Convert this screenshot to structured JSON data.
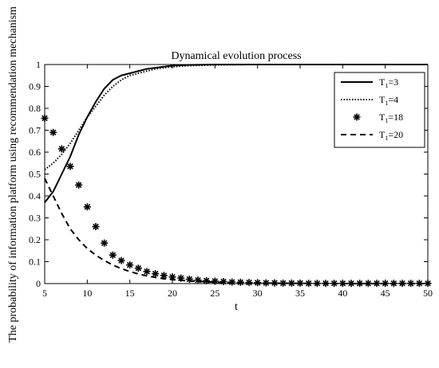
{
  "chart_data": {
    "type": "line",
    "title": "Dynamical evolution process",
    "xlabel": "t",
    "ylabel": "The probability of information platform using recommendation mechanism",
    "xlim": [
      5,
      50
    ],
    "ylim": [
      0,
      1
    ],
    "xticks": [
      "5",
      "10",
      "15",
      "20",
      "25",
      "30",
      "35",
      "40",
      "45",
      "50"
    ],
    "yticks": [
      "0",
      "0.1",
      "0.2",
      "0.3",
      "0.4",
      "0.5",
      "0.6",
      "0.7",
      "0.8",
      "0.9",
      "1"
    ],
    "grid": false,
    "legend_position": "top-right",
    "series": [
      {
        "name": "T1=3",
        "legend_main": "T",
        "legend_sub": "1",
        "legend_tail": "=3",
        "style": "solid",
        "x": [
          5,
          6,
          7,
          8,
          9,
          10,
          11,
          12,
          13,
          14,
          15,
          16,
          17,
          18,
          19,
          20,
          22,
          25,
          30,
          35,
          40,
          45,
          50
        ],
        "y": [
          0.37,
          0.42,
          0.5,
          0.58,
          0.68,
          0.76,
          0.83,
          0.89,
          0.93,
          0.95,
          0.96,
          0.97,
          0.98,
          0.985,
          0.99,
          0.995,
          0.998,
          1.0,
          1.0,
          1.0,
          1.0,
          1.0,
          1.0
        ]
      },
      {
        "name": "T1=4",
        "legend_main": "T",
        "legend_sub": "1",
        "legend_tail": "=4",
        "style": "dotted",
        "x": [
          5,
          6,
          7,
          8,
          9,
          10,
          11,
          12,
          13,
          14,
          15,
          16,
          17,
          18,
          19,
          20,
          22,
          25,
          30,
          35,
          40,
          45,
          50
        ],
        "y": [
          0.52,
          0.55,
          0.59,
          0.64,
          0.7,
          0.76,
          0.81,
          0.86,
          0.9,
          0.93,
          0.95,
          0.96,
          0.97,
          0.98,
          0.985,
          0.99,
          0.995,
          0.998,
          1.0,
          1.0,
          1.0,
          1.0,
          1.0
        ]
      },
      {
        "name": "T1=18",
        "legend_main": "T",
        "legend_sub": "1",
        "legend_tail": "=18",
        "style": "asterisk",
        "x": [
          5,
          6,
          7,
          8,
          9,
          10,
          11,
          12,
          13,
          14,
          15,
          16,
          17,
          18,
          19,
          20,
          21,
          22,
          23,
          24,
          25,
          26,
          27,
          28,
          29,
          30,
          31,
          32,
          33,
          34,
          35,
          36,
          37,
          38,
          39,
          40,
          41,
          42,
          43,
          44,
          45,
          46,
          47,
          48,
          49,
          50
        ],
        "y": [
          0.755,
          0.69,
          0.615,
          0.535,
          0.45,
          0.35,
          0.26,
          0.185,
          0.13,
          0.105,
          0.085,
          0.07,
          0.055,
          0.045,
          0.037,
          0.03,
          0.025,
          0.02,
          0.016,
          0.013,
          0.011,
          0.009,
          0.007,
          0.006,
          0.005,
          0.004,
          0.003,
          0.003,
          0.002,
          0.002,
          0.002,
          0.001,
          0.001,
          0.001,
          0.001,
          0.001,
          0.001,
          0.001,
          0.001,
          0.001,
          0.001,
          0.001,
          0.001,
          0.001,
          0.001,
          0.001
        ]
      },
      {
        "name": "T1=20",
        "legend_main": "T",
        "legend_sub": "1",
        "legend_tail": "=20",
        "style": "dashed",
        "x": [
          5,
          6,
          7,
          8,
          9,
          10,
          11,
          12,
          13,
          14,
          15,
          16,
          17,
          18,
          19,
          20,
          22,
          24,
          26,
          28,
          30,
          35,
          40,
          45,
          50
        ],
        "y": [
          0.48,
          0.4,
          0.32,
          0.25,
          0.2,
          0.16,
          0.13,
          0.105,
          0.085,
          0.068,
          0.055,
          0.044,
          0.035,
          0.028,
          0.022,
          0.018,
          0.012,
          0.008,
          0.005,
          0.003,
          0.002,
          0.001,
          0.0,
          0.0,
          0.0
        ]
      }
    ]
  }
}
